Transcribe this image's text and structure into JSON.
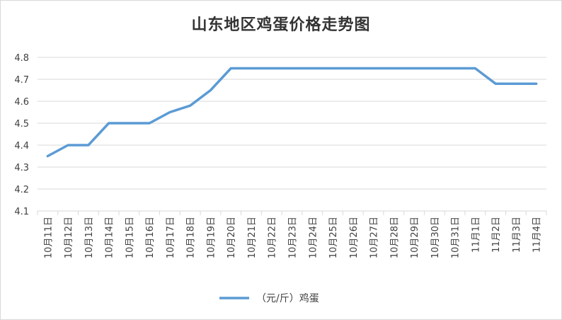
{
  "chart_data": {
    "type": "line",
    "title": "山东地区鸡蛋价格走势图",
    "xlabel": "",
    "ylabel": "",
    "ylim": [
      4.1,
      4.8
    ],
    "yticks": [
      "4.1",
      "4.2",
      "4.3",
      "4.4",
      "4.5",
      "4.6",
      "4.7",
      "4.8"
    ],
    "grid": true,
    "legend_position": "bottom",
    "categories": [
      "10月11日",
      "10月12日",
      "10月13日",
      "10月14日",
      "10月15日",
      "10月16日",
      "10月17日",
      "10月18日",
      "10月19日",
      "10月20日",
      "10月21日",
      "10月22日",
      "10月23日",
      "10月24日",
      "10月25日",
      "10月26日",
      "10月27日",
      "10月28日",
      "10月29日",
      "10月30日",
      "10月31日",
      "11月1日",
      "11月2日",
      "11月3日",
      "11月4日"
    ],
    "series": [
      {
        "name": "（元/斤）鸡蛋",
        "color": "#5b9bd5",
        "values": [
          4.35,
          4.4,
          4.4,
          4.5,
          4.5,
          4.5,
          4.55,
          4.58,
          4.65,
          4.75,
          4.75,
          4.75,
          4.75,
          4.75,
          4.75,
          4.75,
          4.75,
          4.75,
          4.75,
          4.75,
          4.75,
          4.75,
          4.68,
          4.68,
          4.68
        ]
      }
    ]
  }
}
